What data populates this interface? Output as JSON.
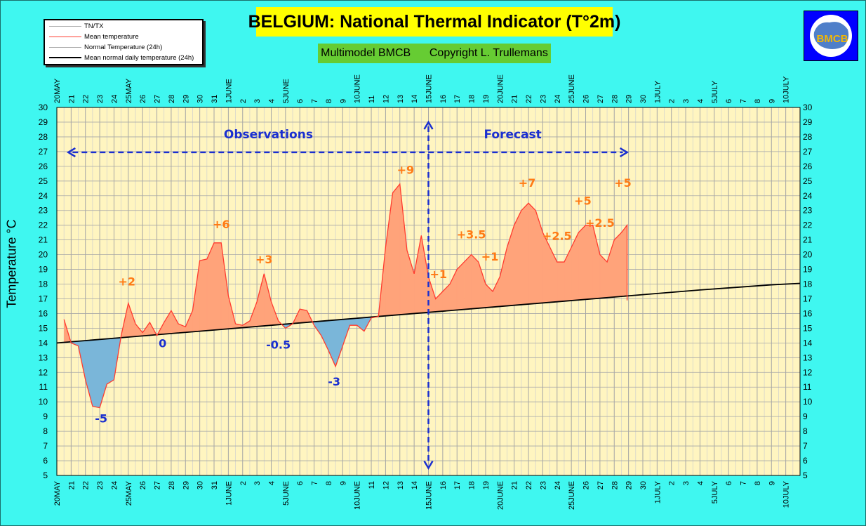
{
  "title": "BELGIUM: National Thermal Indicator (T°2m)",
  "subtitle": "Multimodel BMCB      Copyright L. Trullemans",
  "logo_text": "BMCB",
  "legend": [
    {
      "label": "TN/TX",
      "color": "#aaaaaa"
    },
    {
      "label": "Mean temperature",
      "color": "#ff3b2f"
    },
    {
      "label": "Normal Temperature (24h)",
      "color": "#aaaaaa"
    },
    {
      "label": "Mean normal daily temperature (24h)",
      "color": "#000000"
    }
  ],
  "colors": {
    "background": "#3ff7f0",
    "plot_bg": "#fff5c0",
    "above_fill": "#ffa37a",
    "below_fill": "#7ab6d9",
    "mean_line": "#ff3b2f",
    "normal_line": "#000000",
    "annotation_pos": "#ff7a14",
    "annotation_neg": "#1a2fd0",
    "arrow": "#1a2fd0"
  },
  "chart_data": {
    "type": "area",
    "ylabel": "Temperature °C",
    "ylim": [
      5,
      30
    ],
    "yticks": [
      5,
      6,
      7,
      8,
      9,
      10,
      11,
      12,
      13,
      14,
      15,
      16,
      17,
      18,
      19,
      20,
      21,
      22,
      23,
      24,
      25,
      26,
      27,
      28,
      29,
      30
    ],
    "xlim": [
      0,
      52
    ],
    "x_tick_labels": [
      "20MAY",
      "21",
      "22",
      "23",
      "24",
      "25MAY",
      "26",
      "27",
      "28",
      "29",
      "30",
      "31",
      "1JUNE",
      "2",
      "3",
      "4",
      "5JUNE",
      "6",
      "7",
      "8",
      "9",
      "10JUNE",
      "11",
      "12",
      "13",
      "14",
      "15JUNE",
      "16",
      "17",
      "18",
      "19",
      "20JUNE",
      "21",
      "22",
      "23",
      "24",
      "25JUNE",
      "26",
      "27",
      "28",
      "29",
      "30",
      "1JULY",
      "2",
      "3",
      "4",
      "5JULY",
      "6",
      "7",
      "8",
      "9",
      "10JULY"
    ],
    "series": [
      {
        "name": "Mean temperature",
        "x": [
          0.5,
          1,
          1.5,
          2,
          2.5,
          3,
          3.5,
          4,
          4.5,
          5,
          5.5,
          6,
          6.5,
          7,
          7.5,
          8,
          8.5,
          9,
          9.5,
          10,
          10.5,
          11,
          11.5,
          12,
          12.5,
          13,
          13.5,
          14,
          14.5,
          15,
          15.5,
          16,
          16.5,
          17,
          17.5,
          18,
          18.5,
          19,
          19.5,
          20,
          20.5,
          21,
          21.5,
          22,
          22.5,
          23,
          23.5,
          24,
          24.5,
          25,
          25.5,
          26,
          26.5,
          27,
          27.5,
          28,
          28.5,
          29,
          29.5,
          30,
          30.5,
          31,
          31.5,
          32,
          32.5,
          33,
          33.5,
          34,
          34.5,
          35,
          35.5,
          36,
          36.5,
          37,
          37.5,
          38,
          38.5,
          39,
          39.5,
          39.9
        ],
        "values": [
          15.6,
          14.0,
          13.8,
          11.5,
          9.7,
          9.6,
          11.2,
          11.5,
          14.5,
          16.7,
          15.3,
          14.7,
          15.4,
          14.5,
          15.4,
          16.2,
          15.3,
          15.1,
          16.2,
          19.6,
          19.7,
          20.8,
          20.8,
          17.2,
          15.3,
          15.2,
          15.5,
          16.8,
          18.7,
          16.8,
          15.5,
          15.0,
          15.3,
          16.3,
          16.2,
          15.2,
          14.5,
          13.5,
          12.4,
          13.8,
          15.2,
          15.2,
          14.8,
          15.7,
          15.8,
          20.5,
          24.2,
          24.8,
          20.3,
          18.7,
          21.3,
          18.5,
          17.0,
          17.5,
          18.0,
          19.0,
          19.5,
          20.0,
          19.5,
          18.0,
          17.5,
          18.5,
          20.5,
          22.0,
          23.0,
          23.5,
          23.0,
          21.5,
          20.5,
          19.5,
          19.5,
          20.5,
          21.5,
          22.0,
          22.0,
          20.0,
          19.5,
          21.0,
          21.5,
          22.0
        ]
      },
      {
        "name": "Mean normal daily temperature (24h)",
        "x": [
          0,
          5,
          10,
          15,
          20,
          25,
          30,
          35,
          40,
          45,
          50,
          52
        ],
        "values": [
          14.0,
          14.4,
          14.8,
          15.2,
          15.6,
          16.0,
          16.4,
          16.8,
          17.2,
          17.6,
          17.95,
          18.05
        ]
      }
    ],
    "annotations": [
      {
        "x": 3.1,
        "y": 8.6,
        "text": "-5",
        "sign": "neg"
      },
      {
        "x": 4.9,
        "y": 17.9,
        "text": "+2",
        "sign": "pos"
      },
      {
        "x": 7.4,
        "y": 13.7,
        "text": "0",
        "sign": "neg"
      },
      {
        "x": 11.5,
        "y": 21.8,
        "text": "+6",
        "sign": "pos"
      },
      {
        "x": 14.5,
        "y": 19.4,
        "text": "+3",
        "sign": "pos"
      },
      {
        "x": 15.5,
        "y": 13.6,
        "text": "-0.5",
        "sign": "neg"
      },
      {
        "x": 19.4,
        "y": 11.1,
        "text": "-3",
        "sign": "neg"
      },
      {
        "x": 24.4,
        "y": 25.5,
        "text": "+9",
        "sign": "pos"
      },
      {
        "x": 26.7,
        "y": 18.4,
        "text": "+1",
        "sign": "pos"
      },
      {
        "x": 29.0,
        "y": 21.1,
        "text": "+3.5",
        "sign": "pos"
      },
      {
        "x": 30.3,
        "y": 19.6,
        "text": "+1",
        "sign": "pos"
      },
      {
        "x": 32.9,
        "y": 24.6,
        "text": "+7",
        "sign": "pos"
      },
      {
        "x": 35.0,
        "y": 21.0,
        "text": "+2.5",
        "sign": "pos"
      },
      {
        "x": 36.8,
        "y": 23.4,
        "text": "+5",
        "sign": "pos"
      },
      {
        "x": 38.0,
        "y": 21.9,
        "text": "+2.5",
        "sign": "pos"
      },
      {
        "x": 39.6,
        "y": 24.6,
        "text": "+5",
        "sign": "pos"
      }
    ],
    "observations_label": "Observations",
    "forecast_label": "Forecast",
    "split_x": 26,
    "arrow_x_range": [
      0.8,
      39.9
    ],
    "arrow_y": 26.95,
    "split_y_range": [
      5.5,
      29.0
    ],
    "observations_label_pos": {
      "x": 14.8,
      "y": 27.9
    },
    "forecast_label_pos": {
      "x": 31.9,
      "y": 27.9
    },
    "grid": true
  }
}
